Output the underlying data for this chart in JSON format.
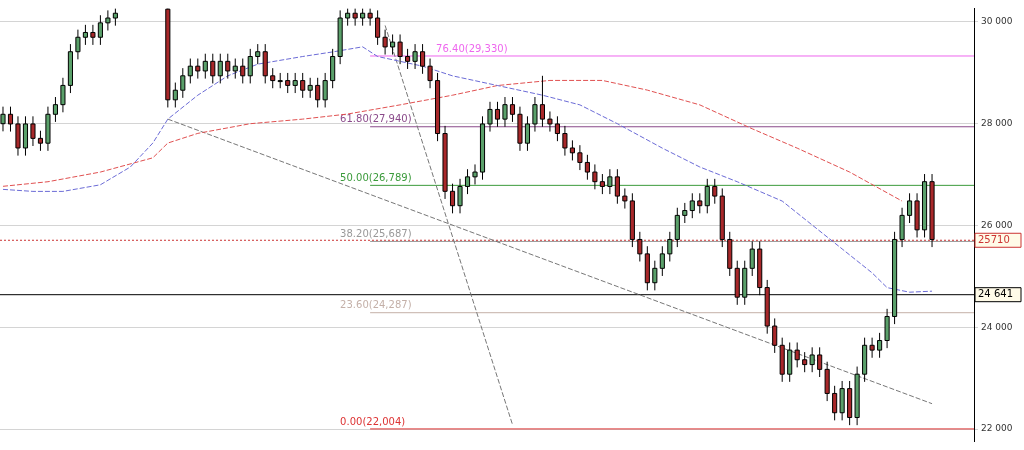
{
  "chart_data": {
    "type": "candlestick",
    "categories": [
      null,
      null,
      null,
      null,
      null,
      null,
      null,
      null,
      null,
      null,
      null,
      null,
      null,
      null,
      null,
      null,
      null,
      null,
      null,
      null,
      null,
      null,
      null,
      null,
      null,
      null,
      null,
      null,
      null,
      null,
      null,
      null,
      null,
      null,
      null,
      null,
      null,
      null,
      null,
      null,
      null,
      null,
      null,
      null,
      null,
      null,
      null,
      null,
      null,
      null,
      null,
      null,
      null,
      null,
      null,
      null,
      null,
      null,
      null,
      null,
      null,
      null,
      null,
      null,
      null,
      null,
      null,
      null,
      null,
      null,
      null,
      null,
      null,
      null,
      null,
      null,
      null,
      null,
      null,
      null,
      null,
      null,
      null,
      null,
      null,
      null,
      null,
      null,
      null,
      null,
      null,
      null,
      null,
      null,
      null,
      null,
      null,
      null,
      null,
      null,
      null,
      null,
      null,
      null,
      null,
      null,
      null,
      null,
      null,
      null,
      null,
      null,
      null,
      null,
      null,
      null,
      null,
      null,
      null,
      null,
      null,
      null,
      null,
      null,
      null
    ],
    "ohlc": [
      [
        28000,
        28335,
        27850,
        28185
      ],
      [
        28185,
        28335,
        27845,
        27995
      ],
      [
        27995,
        28145,
        27373,
        27523
      ],
      [
        27523,
        28145,
        27373,
        27995
      ],
      [
        27995,
        28145,
        27562,
        27712
      ],
      [
        27712,
        27862,
        27467,
        27617
      ],
      [
        27617,
        28335,
        27467,
        28185
      ],
      [
        28185,
        28524,
        28035,
        28374
      ],
      [
        28374,
        28902,
        28224,
        28752
      ],
      [
        28752,
        29564,
        28602,
        29414
      ],
      [
        29414,
        29848,
        29264,
        29698
      ],
      [
        29698,
        29942,
        29548,
        29792
      ],
      [
        29792,
        29942,
        29548,
        29698
      ],
      [
        29698,
        30131,
        29548,
        29981
      ],
      [
        29981,
        30226,
        29831,
        30076
      ],
      [
        30076,
        30260,
        29926,
        30170
      ],
      null,
      null,
      null,
      null,
      null,
      null,
      [
        30250,
        30260,
        28319,
        28469
      ],
      [
        28469,
        28808,
        28319,
        28658
      ],
      [
        28658,
        29091,
        28508,
        28941
      ],
      [
        28941,
        29280,
        28791,
        29130
      ],
      [
        29130,
        29280,
        28886,
        29036
      ],
      [
        29036,
        29375,
        28886,
        29225
      ],
      [
        29225,
        29375,
        28791,
        28941
      ],
      [
        28941,
        29375,
        28791,
        29225
      ],
      [
        29225,
        29375,
        28886,
        29036
      ],
      [
        29036,
        29280,
        28886,
        29130
      ],
      [
        29130,
        29280,
        28791,
        28941
      ],
      [
        28941,
        29470,
        28791,
        29320
      ],
      [
        29320,
        29564,
        29170,
        29414
      ],
      [
        29414,
        29564,
        28791,
        28941
      ],
      [
        28941,
        29091,
        28697,
        28847
      ],
      [
        28847,
        28997,
        28697,
        28847
      ],
      [
        28847,
        28997,
        28602,
        28752
      ],
      [
        28752,
        28997,
        28602,
        28847
      ],
      [
        28847,
        28997,
        28508,
        28658
      ],
      [
        28658,
        28902,
        28508,
        28752
      ],
      [
        28752,
        28902,
        28319,
        28469
      ],
      [
        28469,
        28997,
        28319,
        28847
      ],
      [
        28847,
        29470,
        28697,
        29320
      ],
      [
        29320,
        30226,
        29170,
        30076
      ],
      [
        30076,
        30260,
        29926,
        30170
      ],
      [
        30170,
        30260,
        29926,
        30076
      ],
      [
        30076,
        30260,
        29926,
        30170
      ],
      [
        30170,
        30260,
        29926,
        30076
      ],
      [
        30076,
        30226,
        29548,
        29698
      ],
      [
        29698,
        29848,
        29358,
        29508
      ],
      [
        29508,
        29753,
        29358,
        29603
      ],
      [
        29603,
        29753,
        29170,
        29320
      ],
      [
        29320,
        29470,
        29075,
        29225
      ],
      [
        29225,
        29564,
        29075,
        29414
      ],
      [
        29414,
        29564,
        28980,
        29130
      ],
      [
        29130,
        29280,
        28697,
        28847
      ],
      [
        28847,
        28997,
        27657,
        27807
      ],
      [
        27807,
        27957,
        26522,
        26672
      ],
      [
        26672,
        26822,
        26239,
        26389
      ],
      [
        26389,
        26917,
        26239,
        26767
      ],
      [
        26767,
        27106,
        26617,
        26956
      ],
      [
        26956,
        27200,
        26806,
        27050
      ],
      [
        27050,
        28145,
        26900,
        27995
      ],
      [
        27995,
        28430,
        27845,
        28280
      ],
      [
        28280,
        28430,
        27940,
        28090
      ],
      [
        28090,
        28524,
        27940,
        28374
      ],
      [
        28374,
        28524,
        28035,
        28185
      ],
      [
        28185,
        28335,
        27467,
        27617
      ],
      [
        27617,
        28145,
        27467,
        27995
      ],
      [
        27995,
        28524,
        27845,
        28374
      ],
      [
        28374,
        28941,
        27940,
        28090
      ],
      [
        28090,
        28240,
        27845,
        27995
      ],
      [
        27995,
        28145,
        27657,
        27807
      ],
      [
        27807,
        27957,
        27373,
        27523
      ],
      [
        27523,
        27673,
        27278,
        27428
      ],
      [
        27428,
        27578,
        27089,
        27239
      ],
      [
        27239,
        27389,
        26900,
        27050
      ],
      [
        27050,
        27200,
        26711,
        26861
      ],
      [
        26861,
        27011,
        26617,
        26767
      ],
      [
        26767,
        27106,
        26617,
        26956
      ],
      [
        26956,
        27106,
        26428,
        26578
      ],
      [
        26578,
        26728,
        26333,
        26483
      ],
      [
        26483,
        26633,
        25576,
        25726
      ],
      [
        25726,
        25876,
        25293,
        25443
      ],
      [
        25443,
        25593,
        24726,
        24876
      ],
      [
        24876,
        25309,
        24726,
        25159
      ],
      [
        25159,
        25593,
        25009,
        25443
      ],
      [
        25443,
        25876,
        25293,
        25726
      ],
      [
        25726,
        26349,
        25576,
        26199
      ],
      [
        26199,
        26444,
        26049,
        26294
      ],
      [
        26294,
        26633,
        26144,
        26483
      ],
      [
        26483,
        26633,
        26239,
        26389
      ],
      [
        26389,
        26917,
        26239,
        26767
      ],
      [
        26767,
        26917,
        26428,
        26578
      ],
      [
        26578,
        26728,
        25576,
        25726
      ],
      [
        25726,
        25876,
        25009,
        25159
      ],
      [
        25159,
        25309,
        24442,
        24592
      ],
      [
        24592,
        25309,
        24442,
        25159
      ],
      [
        25159,
        25687,
        25009,
        25537
      ],
      [
        25537,
        25687,
        24631,
        24781
      ],
      [
        24781,
        24931,
        23875,
        24025
      ],
      [
        24025,
        24175,
        23497,
        23647
      ],
      [
        23647,
        23797,
        22929,
        23079
      ],
      [
        23079,
        23702,
        22929,
        23552
      ],
      [
        23552,
        23702,
        23213,
        23363
      ],
      [
        23363,
        23513,
        23118,
        23268
      ],
      [
        23268,
        23607,
        23118,
        23457
      ],
      [
        23457,
        23607,
        23024,
        23174
      ],
      [
        23174,
        23324,
        22551,
        22701
      ],
      [
        22701,
        22851,
        22172,
        22322
      ],
      [
        22322,
        22946,
        22172,
        22796
      ],
      [
        22796,
        22946,
        22078,
        22228
      ],
      [
        22228,
        23229,
        22078,
        23079
      ],
      [
        23079,
        23797,
        22929,
        23647
      ],
      [
        23647,
        23797,
        23402,
        23552
      ],
      [
        23552,
        23891,
        23402,
        23741
      ],
      [
        23741,
        24363,
        23591,
        24213
      ],
      [
        24213,
        25876,
        24063,
        25726
      ],
      [
        25726,
        26349,
        25576,
        26199
      ],
      [
        26199,
        26633,
        26049,
        26483
      ],
      [
        26483,
        26633,
        25765,
        25915
      ],
      [
        25915,
        27011,
        25765,
        26861
      ],
      [
        26861,
        27011,
        25576,
        25726
      ]
    ],
    "series": [
      {
        "type": "line",
        "color": "#6b6bd6",
        "values": [
          26710,
          null,
          null,
          null,
          26670,
          null,
          null,
          null,
          26670,
          null,
          null,
          null,
          null,
          26800,
          null,
          null,
          null,
          27150,
          null,
          null,
          27620,
          null,
          28090,
          null,
          null,
          null,
          28560,
          null,
          null,
          null,
          28940,
          null,
          null,
          null,
          29170,
          null,
          null,
          null,
          null,
          null,
          29320,
          null,
          null,
          null,
          29410,
          null,
          null,
          null,
          29510,
          null,
          29320,
          null,
          null,
          null,
          null,
          null,
          29130,
          null,
          null,
          null,
          28940,
          null,
          null,
          null,
          null,
          null,
          28750,
          null,
          null,
          null,
          null,
          null,
          28560,
          null,
          null,
          null,
          null,
          28370,
          null,
          null,
          null,
          null,
          28000,
          null,
          null,
          null,
          null,
          null,
          27520,
          null,
          null,
          null,
          null,
          27150,
          null,
          null,
          null,
          null,
          26860,
          null,
          null,
          null,
          null,
          null,
          26480,
          null,
          null,
          null,
          26010,
          null,
          null,
          null,
          25540,
          null,
          null,
          null,
          25070,
          null,
          24780,
          null,
          null,
          24690,
          null,
          null,
          24710
        ]
      },
      {
        "type": "line",
        "color": "#e05050",
        "values": [
          26770,
          null,
          null,
          null,
          null,
          null,
          26860,
          null,
          null,
          null,
          null,
          null,
          null,
          27050,
          null,
          null,
          null,
          null,
          null,
          null,
          27330,
          null,
          27620,
          null,
          null,
          null,
          27810,
          null,
          null,
          null,
          null,
          null,
          null,
          28000,
          null,
          null,
          null,
          null,
          null,
          null,
          28090,
          null,
          null,
          null,
          null,
          null,
          28190,
          null,
          null,
          null,
          null,
          null,
          null,
          28370,
          null,
          null,
          null,
          null,
          null,
          null,
          28560,
          null,
          null,
          null,
          null,
          null,
          28750,
          null,
          null,
          null,
          null,
          null,
          null,
          28850,
          null,
          null,
          null,
          null,
          null,
          null,
          28850,
          null,
          null,
          null,
          null,
          null,
          28660,
          null,
          null,
          null,
          null,
          null,
          null,
          28370,
          null,
          null,
          null,
          null,
          null,
          null,
          27900,
          null,
          null,
          null,
          null,
          null,
          27520,
          null,
          null,
          null,
          null,
          null,
          null,
          27050,
          null,
          null,
          null,
          null,
          null,
          null,
          26480,
          null,
          null,
          null,
          null
        ]
      },
      {
        "type": "line",
        "color": "#777777",
        "values": [
          null,
          null,
          null,
          null,
          null,
          null,
          null,
          null,
          null,
          null,
          null,
          null,
          null,
          null,
          null,
          null,
          null,
          null,
          null,
          null,
          null,
          null,
          28090,
          null,
          null,
          null,
          null,
          null,
          null,
          null,
          null,
          null,
          null,
          null,
          null,
          null,
          null,
          null,
          null,
          null,
          null,
          null,
          null,
          null,
          null,
          null,
          null,
          null,
          null,
          null,
          null,
          null,
          null,
          null,
          null,
          null,
          null,
          null,
          null,
          null,
          null,
          null,
          null,
          null,
          null,
          null,
          null,
          null,
          null,
          null,
          null,
          null,
          null,
          null,
          null,
          null,
          null,
          null,
          null,
          null,
          null,
          null,
          null,
          null,
          null,
          null,
          null,
          null,
          null,
          null,
          null,
          null,
          null,
          null,
          null,
          null,
          null,
          null,
          null,
          null,
          null,
          null,
          null,
          null,
          null,
          null,
          null,
          null,
          null,
          null,
          null,
          null,
          null,
          null,
          null,
          null,
          null,
          null,
          null,
          null,
          null,
          null,
          null,
          null,
          22500
        ]
      },
      {
        "type": "line",
        "color": "#777777",
        "values": [
          null,
          null,
          null,
          null,
          null,
          null,
          null,
          null,
          null,
          null,
          null,
          null,
          null,
          null,
          null,
          null,
          null,
          null,
          null,
          null,
          null,
          null,
          null,
          null,
          null,
          null,
          null,
          null,
          null,
          null,
          null,
          null,
          null,
          null,
          null,
          null,
          null,
          null,
          null,
          null,
          null,
          null,
          null,
          null,
          null,
          null,
          null,
          null,
          null,
          null,
          null,
          29930,
          null,
          null,
          null,
          null,
          null,
          null,
          null,
          null,
          null,
          null,
          null,
          null,
          null,
          null,
          null,
          null,
          22090,
          null,
          null,
          null,
          null,
          null,
          null,
          null,
          null,
          null,
          null,
          null,
          null,
          null,
          null,
          null,
          null,
          null,
          null,
          null,
          null,
          null,
          null,
          null,
          null,
          null,
          null,
          null,
          null,
          null,
          null,
          null,
          null,
          null,
          null,
          null,
          null,
          null,
          null,
          null,
          null,
          null,
          null,
          null,
          null,
          null,
          null,
          null,
          null,
          null,
          null,
          null,
          null,
          null,
          null,
          null,
          null
        ]
      }
    ],
    "ylim": [
      21755,
      30265
    ],
    "yticks": [
      {
        "value": 22000,
        "label": "22 000"
      },
      {
        "value": 24000,
        "label": "24 000"
      },
      {
        "value": 26000,
        "label": "26 000"
      },
      {
        "value": 28000,
        "label": "28 000"
      },
      {
        "value": 30000,
        "label": "30 000"
      }
    ],
    "tick_labels": "y",
    "grid": "y",
    "legend": false,
    "marker": "none",
    "line_style": "dashed",
    "ref_lines": [
      {
        "axis": "y",
        "value": 29330,
        "label": "76.40(29,330)",
        "color": "#ee66ee"
      },
      {
        "axis": "y",
        "value": 27940,
        "label": "61.80(27,940)",
        "color": "#8a4a8a"
      },
      {
        "axis": "y",
        "value": 26789,
        "label": "50.00(26,789)",
        "color": "#3a9a3a"
      },
      {
        "axis": "y",
        "value": 25687,
        "label": "38.20(25,687)",
        "color": "#999999"
      },
      {
        "axis": "y",
        "value": 24287,
        "label": "23.60(24,287)",
        "color": "#c4b0a8"
      },
      {
        "axis": "y",
        "value": 22004,
        "label": "0.00(22,004)",
        "color": "#dd3333"
      },
      {
        "axis": "y",
        "value": 25710,
        "label": "25710",
        "color": "#cc3333",
        "line_style": "dotted"
      },
      {
        "axis": "y",
        "value": 24641,
        "label": "24 641",
        "color": "#000000",
        "line_style": "solid"
      }
    ]
  }
}
